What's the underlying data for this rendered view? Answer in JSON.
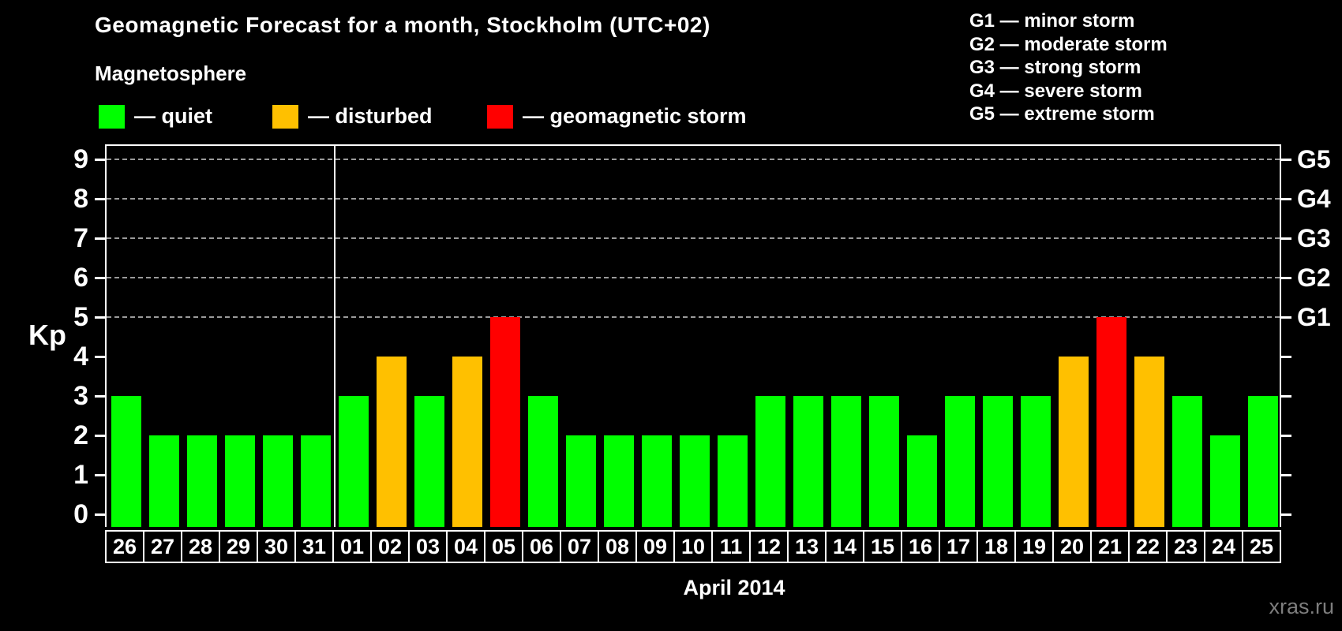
{
  "title": "Geomagnetic Forecast for a month, Stockholm (UTC+02)",
  "subtitle": "Magnetosphere",
  "legend": {
    "items": [
      {
        "label": "— quiet",
        "color": "#00ff00"
      },
      {
        "label": "— disturbed",
        "color": "#ffc000"
      },
      {
        "label": "— geomagnetic storm",
        "color": "#ff0000"
      }
    ]
  },
  "g_scale_legend": [
    "G1 — minor storm",
    "G2 — moderate storm",
    "G3 — strong storm",
    "G4 — severe storm",
    "G5 — extreme storm"
  ],
  "footer": {
    "month_label": "April 2014",
    "watermark": "xras.ru"
  },
  "chart_data": {
    "type": "bar",
    "title": "Geomagnetic Forecast for a month, Stockholm (UTC+02)",
    "ylabel": "Kp",
    "xlabel": "April 2014",
    "categories": [
      "26",
      "27",
      "28",
      "29",
      "30",
      "31",
      "01",
      "02",
      "03",
      "04",
      "05",
      "06",
      "07",
      "08",
      "09",
      "10",
      "11",
      "12",
      "13",
      "14",
      "15",
      "16",
      "17",
      "18",
      "19",
      "20",
      "21",
      "22",
      "23",
      "24",
      "25"
    ],
    "values": [
      3,
      2,
      2,
      2,
      2,
      2,
      3,
      4,
      3,
      4,
      5,
      3,
      2,
      2,
      2,
      2,
      2,
      3,
      3,
      3,
      3,
      2,
      3,
      3,
      3,
      4,
      5,
      4,
      3,
      2,
      3
    ],
    "ylim": [
      0,
      9.4
    ],
    "yticks": [
      0,
      1,
      2,
      3,
      4,
      5,
      6,
      7,
      8,
      9
    ],
    "gridlines_at_kp": [
      5,
      6,
      7,
      8,
      9
    ],
    "right_axis_labels": [
      {
        "kp": 5,
        "label": "G1"
      },
      {
        "kp": 6,
        "label": "G2"
      },
      {
        "kp": 7,
        "label": "G3"
      },
      {
        "kp": 8,
        "label": "G4"
      },
      {
        "kp": 9,
        "label": "G5"
      }
    ],
    "separator_after_index": 5,
    "grid": true,
    "color_rule": {
      "quiet_max_kp": 3,
      "quiet_color": "#00ff00",
      "disturbed_kp": 4,
      "disturbed_color": "#ffc000",
      "storm_min_kp": 5,
      "storm_color": "#ff0000"
    }
  }
}
